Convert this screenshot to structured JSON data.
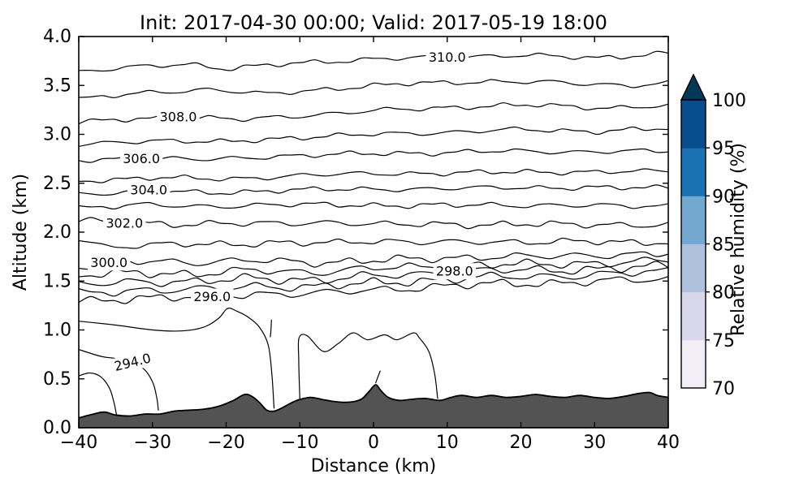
{
  "chart_data": {
    "type": "contour",
    "title": "Init: 2017-04-30 00:00; Valid: 2017-05-19 18:00",
    "xlabel": "Distance (km)",
    "ylabel": "Altitude (km)",
    "xlim": [
      -40,
      40
    ],
    "ylim": [
      0.0,
      4.0
    ],
    "xticks": [
      -40,
      -30,
      -20,
      -10,
      0,
      10,
      20,
      30,
      40
    ],
    "xticklabels": [
      "−40",
      "−30",
      "−20",
      "−10",
      "0",
      "10",
      "20",
      "30",
      "40"
    ],
    "yticks": [
      0.0,
      0.5,
      1.0,
      1.5,
      2.0,
      2.5,
      3.0,
      3.5,
      4.0
    ],
    "yticklabels": [
      "0.0",
      "0.5",
      "1.0",
      "1.5",
      "2.0",
      "2.5",
      "3.0",
      "3.5",
      "4.0"
    ],
    "grid": false,
    "line_color": "#000000",
    "contour_interval": 1.0,
    "contours": [
      {
        "level": 310,
        "amp": 0.018,
        "pts": [
          [
            -40,
            3.64
          ],
          [
            -30,
            3.7
          ],
          [
            -25,
            3.72
          ],
          [
            -20,
            3.67
          ],
          [
            -10,
            3.73
          ],
          [
            0,
            3.77
          ],
          [
            10,
            3.79
          ],
          [
            20,
            3.81
          ],
          [
            30,
            3.78
          ],
          [
            40,
            3.83
          ]
        ]
      },
      {
        "level": 309,
        "amp": 0.018,
        "pts": [
          [
            -40,
            3.36
          ],
          [
            -30,
            3.43
          ],
          [
            -22,
            3.46
          ],
          [
            -15,
            3.41
          ],
          [
            -5,
            3.47
          ],
          [
            5,
            3.52
          ],
          [
            15,
            3.54
          ],
          [
            25,
            3.53
          ],
          [
            35,
            3.5
          ],
          [
            40,
            3.52
          ]
        ]
      },
      {
        "level": 308,
        "amp": 0.018,
        "pts": [
          [
            -40,
            3.12
          ],
          [
            -32,
            3.16
          ],
          [
            -26,
            3.18
          ],
          [
            -18,
            3.15
          ],
          [
            -8,
            3.2
          ],
          [
            2,
            3.25
          ],
          [
            12,
            3.28
          ],
          [
            22,
            3.3
          ],
          [
            32,
            3.27
          ],
          [
            40,
            3.29
          ]
        ]
      },
      {
        "level": 307,
        "amp": 0.018,
        "pts": [
          [
            -40,
            2.89
          ],
          [
            -30,
            2.94
          ],
          [
            -20,
            2.92
          ],
          [
            -10,
            2.97
          ],
          [
            0,
            3.0
          ],
          [
            10,
            3.02
          ],
          [
            20,
            3.05
          ],
          [
            30,
            3.03
          ],
          [
            40,
            3.06
          ]
        ]
      },
      {
        "level": 306,
        "amp": 0.018,
        "pts": [
          [
            -40,
            2.73
          ],
          [
            -31,
            2.76
          ],
          [
            -22,
            2.74
          ],
          [
            -12,
            2.78
          ],
          [
            -2,
            2.8
          ],
          [
            8,
            2.81
          ],
          [
            18,
            2.83
          ],
          [
            28,
            2.82
          ],
          [
            40,
            2.83
          ]
        ]
      },
      {
        "level": 305,
        "amp": 0.018,
        "pts": [
          [
            -40,
            2.52
          ],
          [
            -30,
            2.56
          ],
          [
            -20,
            2.54
          ],
          [
            -10,
            2.58
          ],
          [
            0,
            2.6
          ],
          [
            10,
            2.6
          ],
          [
            20,
            2.62
          ],
          [
            30,
            2.61
          ],
          [
            40,
            2.63
          ]
        ]
      },
      {
        "level": 304,
        "amp": 0.018,
        "pts": [
          [
            -40,
            2.39
          ],
          [
            -30,
            2.42
          ],
          [
            -22,
            2.4
          ],
          [
            -12,
            2.43
          ],
          [
            -2,
            2.44
          ],
          [
            8,
            2.44
          ],
          [
            18,
            2.46
          ],
          [
            28,
            2.45
          ],
          [
            40,
            2.46
          ]
        ]
      },
      {
        "level": 303,
        "amp": 0.02,
        "pts": [
          [
            -40,
            2.25
          ],
          [
            -32,
            2.28
          ],
          [
            -24,
            2.26
          ],
          [
            -14,
            2.28
          ],
          [
            -4,
            2.28
          ],
          [
            6,
            2.27
          ],
          [
            16,
            2.28
          ],
          [
            26,
            2.27
          ],
          [
            40,
            2.27
          ]
        ]
      },
      {
        "level": 302,
        "amp": 0.024,
        "pts": [
          [
            -40,
            2.13
          ],
          [
            -34,
            2.1
          ],
          [
            -28,
            2.07
          ],
          [
            -20,
            2.1
          ],
          [
            -12,
            2.08
          ],
          [
            -4,
            2.1
          ],
          [
            4,
            2.08
          ],
          [
            12,
            2.07
          ],
          [
            20,
            2.09
          ],
          [
            28,
            2.07
          ],
          [
            40,
            2.08
          ]
        ]
      },
      {
        "level": 301,
        "amp": 0.024,
        "pts": [
          [
            -40,
            1.94
          ],
          [
            -36,
            1.83
          ],
          [
            -30,
            1.87
          ],
          [
            -24,
            1.89
          ],
          [
            -18,
            1.87
          ],
          [
            -10,
            1.89
          ],
          [
            -2,
            1.91
          ],
          [
            6,
            1.89
          ],
          [
            14,
            1.91
          ],
          [
            22,
            1.89
          ],
          [
            30,
            1.91
          ],
          [
            40,
            1.89
          ]
        ]
      },
      {
        "level": 300,
        "amp": 0.028,
        "pts": [
          [
            -40,
            1.64
          ],
          [
            -36,
            1.68
          ],
          [
            -30,
            1.71
          ],
          [
            -24,
            1.69
          ],
          [
            -16,
            1.71
          ],
          [
            -8,
            1.69
          ],
          [
            0,
            1.71
          ],
          [
            8,
            1.73
          ],
          [
            16,
            1.75
          ],
          [
            24,
            1.75
          ],
          [
            32,
            1.77
          ],
          [
            40,
            1.78
          ]
        ]
      },
      {
        "level": 299,
        "amp": 0.03,
        "pts": [
          [
            -40,
            1.55
          ],
          [
            -32,
            1.59
          ],
          [
            -24,
            1.57
          ],
          [
            -16,
            1.61
          ],
          [
            -8,
            1.59
          ],
          [
            0,
            1.63
          ],
          [
            8,
            1.65
          ],
          [
            16,
            1.67
          ],
          [
            24,
            1.67
          ],
          [
            32,
            1.69
          ],
          [
            40,
            1.71
          ]
        ]
      },
      {
        "level": 298,
        "amp": 0.032,
        "pts": [
          [
            -40,
            1.46
          ],
          [
            -32,
            1.5
          ],
          [
            -24,
            1.49
          ],
          [
            -16,
            1.53
          ],
          [
            -8,
            1.51
          ],
          [
            0,
            1.55
          ],
          [
            8,
            1.58
          ],
          [
            16,
            1.61
          ],
          [
            24,
            1.61
          ],
          [
            32,
            1.63
          ],
          [
            40,
            1.65
          ]
        ]
      },
      {
        "level": 297,
        "amp": 0.032,
        "pts": [
          [
            -40,
            1.37
          ],
          [
            -32,
            1.41
          ],
          [
            -24,
            1.41
          ],
          [
            -16,
            1.45
          ],
          [
            -8,
            1.44
          ],
          [
            0,
            1.48
          ],
          [
            8,
            1.51
          ],
          [
            16,
            1.54
          ],
          [
            24,
            1.55
          ],
          [
            32,
            1.57
          ],
          [
            40,
            1.6
          ]
        ]
      },
      {
        "level": 296,
        "amp": 0.03,
        "pts": [
          [
            -40,
            1.29
          ],
          [
            -32,
            1.33
          ],
          [
            -24,
            1.33
          ],
          [
            -16,
            1.37
          ],
          [
            -8,
            1.37
          ],
          [
            0,
            1.41
          ],
          [
            8,
            1.44
          ],
          [
            16,
            1.47
          ],
          [
            24,
            1.48
          ],
          [
            32,
            1.5
          ],
          [
            40,
            1.52
          ]
        ]
      },
      {
        "level": 295,
        "amp": 0,
        "pts": [
          [
            -40,
            1.09
          ],
          [
            -35,
            1.05
          ],
          [
            -30,
            1.0
          ],
          [
            -26,
            0.99
          ],
          [
            -23,
            1.03
          ],
          [
            -21,
            1.12
          ],
          [
            -19.8,
            1.22
          ],
          [
            -18.5,
            1.19
          ],
          [
            -17,
            1.13
          ],
          [
            -15.5,
            1.03
          ],
          [
            -14.3,
            0.85
          ],
          [
            -13.8,
            0.55
          ],
          [
            -13.5,
            0.2
          ]
        ]
      },
      {
        "level": 294,
        "amp": 0,
        "pts": [
          [
            -40,
            0.8
          ],
          [
            -37,
            0.73
          ],
          [
            -34.5,
            0.7
          ],
          [
            -31.5,
            0.62
          ],
          [
            -30,
            0.47
          ],
          [
            -29.4,
            0.3
          ],
          [
            -29.2,
            0.18
          ]
        ]
      },
      {
        "level": 294,
        "amp": 0,
        "pts": [
          [
            -10.0,
            0.29
          ],
          [
            -10.15,
            0.7
          ],
          [
            -10.1,
            0.92
          ],
          [
            -9.0,
            0.94
          ],
          [
            -6.8,
            0.78
          ],
          [
            -4.8,
            0.86
          ],
          [
            -2.8,
            0.97
          ],
          [
            -0.8,
            0.9
          ],
          [
            1.5,
            0.95
          ],
          [
            3.2,
            0.9
          ],
          [
            5.4,
            0.97
          ],
          [
            6.2,
            0.92
          ],
          [
            7.5,
            0.78
          ],
          [
            8.3,
            0.55
          ],
          [
            8.7,
            0.3
          ]
        ]
      },
      {
        "level": 293,
        "amp": 0,
        "pts": [
          [
            -40,
            0.53
          ],
          [
            -38.5,
            0.56
          ],
          [
            -37,
            0.52
          ],
          [
            -35.8,
            0.4
          ],
          [
            -35.2,
            0.25
          ],
          [
            -34.9,
            0.14
          ]
        ]
      },
      {
        "level": 294,
        "amp": 0,
        "pts": [
          [
            -13.85,
            1.1
          ],
          [
            -13.92,
            1.0
          ],
          [
            -14.0,
            0.93
          ]
        ]
      },
      {
        "level": 294,
        "amp": 0,
        "pts": [
          [
            0.3,
            0.46
          ],
          [
            0.6,
            0.52
          ],
          [
            0.9,
            0.58
          ]
        ]
      }
    ],
    "contour_labels": [
      {
        "text": "310.0",
        "x": 10,
        "alt": 3.79,
        "rot": 0
      },
      {
        "text": "308.0",
        "x": -26.5,
        "alt": 3.18,
        "rot": 0
      },
      {
        "text": "306.0",
        "x": -31.5,
        "alt": 2.75,
        "rot": 0
      },
      {
        "text": "304.0",
        "x": -30.5,
        "alt": 2.43,
        "rot": 0
      },
      {
        "text": "302.0",
        "x": -33.8,
        "alt": 2.09,
        "rot": 0
      },
      {
        "text": "300.0",
        "x": -35.9,
        "alt": 1.69,
        "rot": 0
      },
      {
        "text": "298.0",
        "x": 11,
        "alt": 1.6,
        "rot": 0
      },
      {
        "text": "296.0",
        "x": -21.9,
        "alt": 1.34,
        "rot": 0
      },
      {
        "text": "294.0",
        "x": -32.7,
        "alt": 0.67,
        "rot": -14
      }
    ],
    "terrain": {
      "color": "#535353",
      "outline": "#000000",
      "profile": [
        [
          -40,
          0.1
        ],
        [
          -38,
          0.14
        ],
        [
          -36.5,
          0.16
        ],
        [
          -35,
          0.13
        ],
        [
          -33,
          0.12
        ],
        [
          -31,
          0.14
        ],
        [
          -29,
          0.14
        ],
        [
          -27,
          0.17
        ],
        [
          -25,
          0.18
        ],
        [
          -23,
          0.19
        ],
        [
          -21,
          0.22
        ],
        [
          -19,
          0.28
        ],
        [
          -17.5,
          0.34
        ],
        [
          -16.5,
          0.32
        ],
        [
          -15.5,
          0.26
        ],
        [
          -14.5,
          0.18
        ],
        [
          -13.5,
          0.17
        ],
        [
          -12.5,
          0.2
        ],
        [
          -11,
          0.26
        ],
        [
          -10,
          0.29
        ],
        [
          -8.5,
          0.31
        ],
        [
          -7,
          0.29
        ],
        [
          -5.5,
          0.27
        ],
        [
          -4,
          0.26
        ],
        [
          -2.5,
          0.27
        ],
        [
          -1.5,
          0.3
        ],
        [
          -0.5,
          0.38
        ],
        [
          0.3,
          0.44
        ],
        [
          1,
          0.38
        ],
        [
          2,
          0.31
        ],
        [
          3.5,
          0.28
        ],
        [
          5,
          0.29
        ],
        [
          7,
          0.3
        ],
        [
          9,
          0.28
        ],
        [
          10.5,
          0.31
        ],
        [
          12,
          0.33
        ],
        [
          14,
          0.31
        ],
        [
          16,
          0.33
        ],
        [
          18,
          0.31
        ],
        [
          20,
          0.32
        ],
        [
          22,
          0.34
        ],
        [
          24,
          0.32
        ],
        [
          26,
          0.31
        ],
        [
          28,
          0.33
        ],
        [
          30,
          0.31
        ],
        [
          32,
          0.3
        ],
        [
          34,
          0.32
        ],
        [
          36,
          0.35
        ],
        [
          37.5,
          0.36
        ],
        [
          38.5,
          0.33
        ],
        [
          40,
          0.31
        ]
      ]
    },
    "colorbar": {
      "label": "Relative humidity (%)",
      "ticks": [
        70,
        75,
        80,
        85,
        90,
        95,
        100
      ],
      "segment_colors": [
        "#f1eef6",
        "#d9d8ea",
        "#aec1dd",
        "#74a9cf",
        "#1b72b2",
        "#084d8e"
      ],
      "extend": "max",
      "extend_color": "#023858",
      "position": "right"
    }
  }
}
